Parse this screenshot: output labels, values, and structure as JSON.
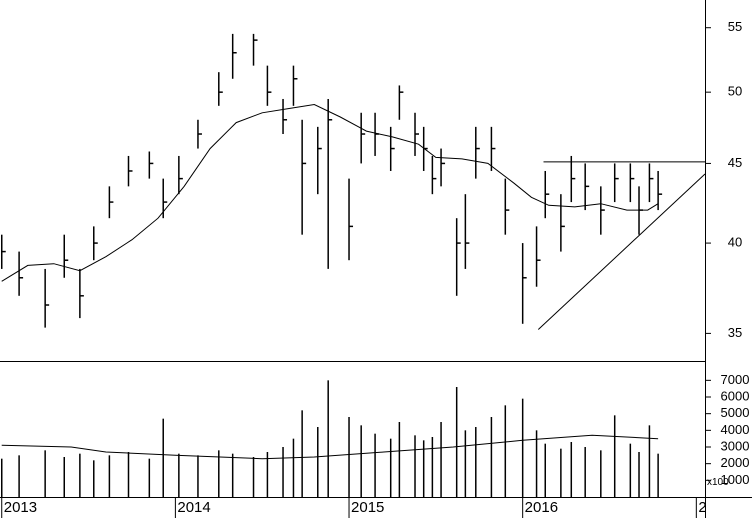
{
  "chart_data": {
    "type": "ohlc",
    "x": [
      2013.0,
      2013.1,
      2013.25,
      2013.36,
      2013.45,
      2013.53,
      2013.62,
      2013.73,
      2013.85,
      2013.93,
      2014.02,
      2014.13,
      2014.25,
      2014.33,
      2014.45,
      2014.53,
      2014.62,
      2014.68,
      2014.73,
      2014.82,
      2014.88,
      2015.0,
      2015.07,
      2015.15,
      2015.24,
      2015.29,
      2015.38,
      2015.43,
      2015.48,
      2015.53,
      2015.62,
      2015.67,
      2015.73,
      2015.82,
      2015.9,
      2016.0,
      2016.08,
      2016.13,
      2016.22,
      2016.28,
      2016.36,
      2016.45,
      2016.53,
      2016.62,
      2016.67,
      2016.73,
      2016.78
    ],
    "high": [
      40.5,
      39.5,
      38.5,
      40.5,
      38.5,
      41,
      43.5,
      45.5,
      45.8,
      44,
      45.5,
      48,
      51.5,
      54.5,
      54.5,
      52,
      49.5,
      52,
      48,
      47.5,
      49.5,
      44,
      48.5,
      48.5,
      47.5,
      50.5,
      48.5,
      47.5,
      45.5,
      46,
      41.5,
      43,
      47.5,
      47.5,
      44,
      40,
      41,
      44.5,
      43,
      45.5,
      45,
      43.5,
      45,
      45,
      43.5,
      45,
      44.5
    ],
    "low": [
      38.5,
      37,
      35.3,
      38,
      35.8,
      39,
      41.5,
      43.5,
      44,
      41.5,
      43,
      46,
      49,
      51,
      52,
      49,
      47,
      49,
      40.5,
      43,
      38.5,
      39,
      45,
      45.5,
      44.5,
      48,
      45.5,
      44.5,
      43,
      43.5,
      37,
      38.5,
      44,
      44.5,
      40.5,
      35.5,
      37.5,
      41.5,
      39.5,
      42.5,
      42,
      40.5,
      42.5,
      42.5,
      40.5,
      42.5,
      42
    ],
    "close": [
      39.5,
      38,
      36.5,
      39,
      37,
      40,
      42.5,
      44.5,
      45,
      42.5,
      44,
      47,
      50,
      53,
      54,
      50,
      48,
      51,
      45,
      46,
      48,
      41,
      47,
      47,
      46,
      50,
      47,
      46,
      44,
      45,
      40,
      40,
      46,
      46,
      42,
      38,
      39,
      43,
      41,
      44,
      43.5,
      42,
      44,
      44,
      42,
      44,
      43
    ],
    "color": "#000000",
    "ma": {
      "x": [
        2013.0,
        2013.15,
        2013.3,
        2013.45,
        2013.6,
        2013.75,
        2013.9,
        2014.05,
        2014.2,
        2014.35,
        2014.5,
        2014.65,
        2014.8,
        2014.95,
        2015.1,
        2015.25,
        2015.4,
        2015.5,
        2015.65,
        2015.8,
        2015.95,
        2016.05,
        2016.15,
        2016.3,
        2016.45,
        2016.6,
        2016.72,
        2016.78
      ],
      "values": [
        37.8,
        38.7,
        38.8,
        38.4,
        39.2,
        40.2,
        41.5,
        43.5,
        46,
        47.8,
        48.5,
        48.8,
        49.1,
        48.2,
        47.2,
        46.8,
        46.3,
        45.4,
        45.3,
        45,
        43.7,
        42.8,
        42.3,
        42.2,
        42.4,
        42,
        42,
        42.4
      ]
    },
    "lines": [
      {
        "x": [
          2016.12,
          2017.05
        ],
        "y": [
          45.1,
          45.1
        ]
      },
      {
        "x": [
          2016.09,
          2017.05
        ],
        "y": [
          35.2,
          44.3
        ]
      }
    ],
    "xlim": [
      2012.99,
      2017.05
    ],
    "xticks": [
      2013,
      2014,
      2015,
      2016,
      {
        "value": 2017,
        "label": "2"
      }
    ],
    "ylim": [
      33.6,
      57.3
    ],
    "log_y": true,
    "yticks": [
      35,
      40,
      45,
      50,
      55
    ],
    "volume": {
      "values": [
        2300,
        2500,
        2800,
        2400,
        2600,
        2200,
        2500,
        2700,
        2300,
        4700,
        2600,
        2500,
        2800,
        2600,
        2400,
        2700,
        3000,
        3500,
        5200,
        4200,
        7000,
        4800,
        4300,
        3800,
        3500,
        4500,
        3700,
        3400,
        3600,
        4500,
        6600,
        4000,
        4200,
        4800,
        5500,
        5900,
        4000,
        3200,
        2900,
        3300,
        3000,
        2800,
        4900,
        3200,
        2700,
        4300,
        2600
      ],
      "ma": {
        "x": [
          2013.0,
          2013.4,
          2013.6,
          2014.0,
          2014.5,
          2014.8,
          2015.2,
          2015.6,
          2016.0,
          2016.4,
          2016.78
        ],
        "values": [
          3100,
          3000,
          2700,
          2500,
          2300,
          2400,
          2700,
          3000,
          3400,
          3700,
          3500
        ]
      },
      "ylim": [
        0,
        8100
      ],
      "yticks": [
        1000,
        2000,
        3000,
        4000,
        5000,
        6000,
        7000
      ],
      "unit_label": "x100"
    }
  }
}
